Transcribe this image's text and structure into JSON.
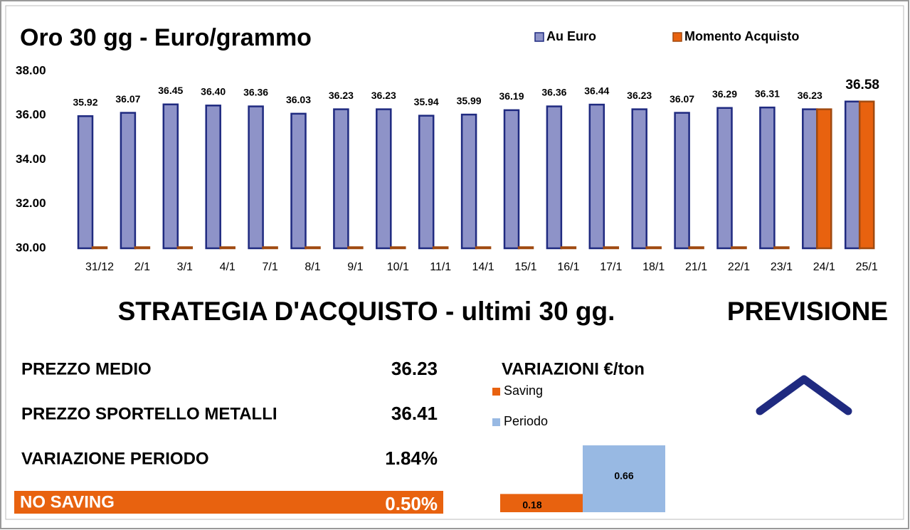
{
  "chart_data": [
    {
      "type": "bar",
      "title": "Oro 30 gg - Euro/grammo",
      "categories": [
        "31/12",
        "2/1",
        "3/1",
        "4/1",
        "7/1",
        "8/1",
        "9/1",
        "10/1",
        "11/1",
        "14/1",
        "15/1",
        "16/1",
        "17/1",
        "18/1",
        "21/1",
        "22/1",
        "23/1",
        "24/1",
        "25/1"
      ],
      "series": [
        {
          "name": "Au Euro",
          "color": "#8e93c8",
          "edge": "#1f2a80",
          "values": [
            35.92,
            36.07,
            36.45,
            36.4,
            36.36,
            36.03,
            36.23,
            36.23,
            35.94,
            35.99,
            36.19,
            36.36,
            36.44,
            36.23,
            36.07,
            36.29,
            36.31,
            36.23,
            36.58
          ],
          "value_labels": [
            "35.92",
            "36.07",
            "36.45",
            "36.40",
            "36.36",
            "36.03",
            "36.23",
            "36.23",
            "35.94",
            "35.99",
            "36.19",
            "36.36",
            "36.44",
            "36.23",
            "36.07",
            "36.29",
            "36.31",
            "36.23",
            "36.58"
          ]
        },
        {
          "name": "Momento Acquisto",
          "color": "#e8620f",
          "edge": "#a04a10",
          "values": [
            30,
            30,
            30,
            30,
            30,
            30,
            30,
            30,
            30,
            30,
            30,
            30,
            30,
            30,
            30,
            30,
            30,
            36.23,
            36.58
          ]
        }
      ],
      "ylim": [
        30,
        38
      ],
      "yticks": [
        {
          "value": 30,
          "label": "30.00"
        },
        {
          "value": 32,
          "label": "32.00"
        },
        {
          "value": 34,
          "label": "34.00"
        },
        {
          "value": 36,
          "label": "36.00"
        },
        {
          "value": 38,
          "label": "38.00"
        }
      ],
      "legend": "top-right"
    },
    {
      "type": "bar",
      "title": "VARIAZIONI €/ton",
      "series": [
        {
          "name": "Saving",
          "color": "#e8620f",
          "values": [
            0.18
          ]
        },
        {
          "name": "Periodo",
          "color": "#98b9e3",
          "values": [
            0.66
          ]
        }
      ]
    }
  ],
  "strategy": {
    "title": "STRATEGIA D'ACQUISTO - ultimi 30 gg.",
    "forecast": "PREVISIONE",
    "rows": [
      [
        "PREZZO MEDIO",
        "36.23"
      ],
      [
        "PREZZO SPORTELLO METALLI",
        "36.41"
      ],
      [
        "VARIAZIONE PERIODO",
        "1.84%"
      ]
    ],
    "result": [
      "NO SAVING",
      "0.50%"
    ]
  }
}
